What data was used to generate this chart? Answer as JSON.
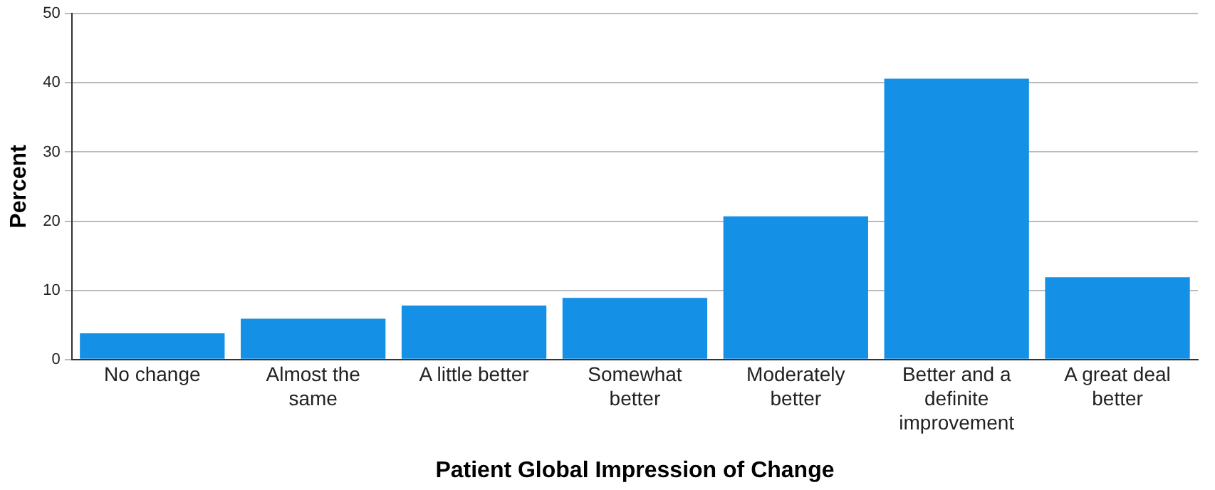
{
  "chart_data": {
    "type": "bar",
    "xlabel": "Patient Global Impression of Change",
    "ylabel": "Percent",
    "categories": [
      "No change",
      "Almost the same",
      "A little better",
      "Somewhat better",
      "Moderately better",
      "Better and a definite improvement",
      "A great deal better"
    ],
    "values": [
      3.8,
      5.9,
      7.8,
      8.9,
      20.7,
      40.6,
      11.9
    ],
    "color": "#1490e6",
    "ylim": [
      0,
      50
    ],
    "yticks": [
      0,
      10,
      20,
      30,
      40,
      50
    ],
    "grid": "y",
    "legend": false
  }
}
